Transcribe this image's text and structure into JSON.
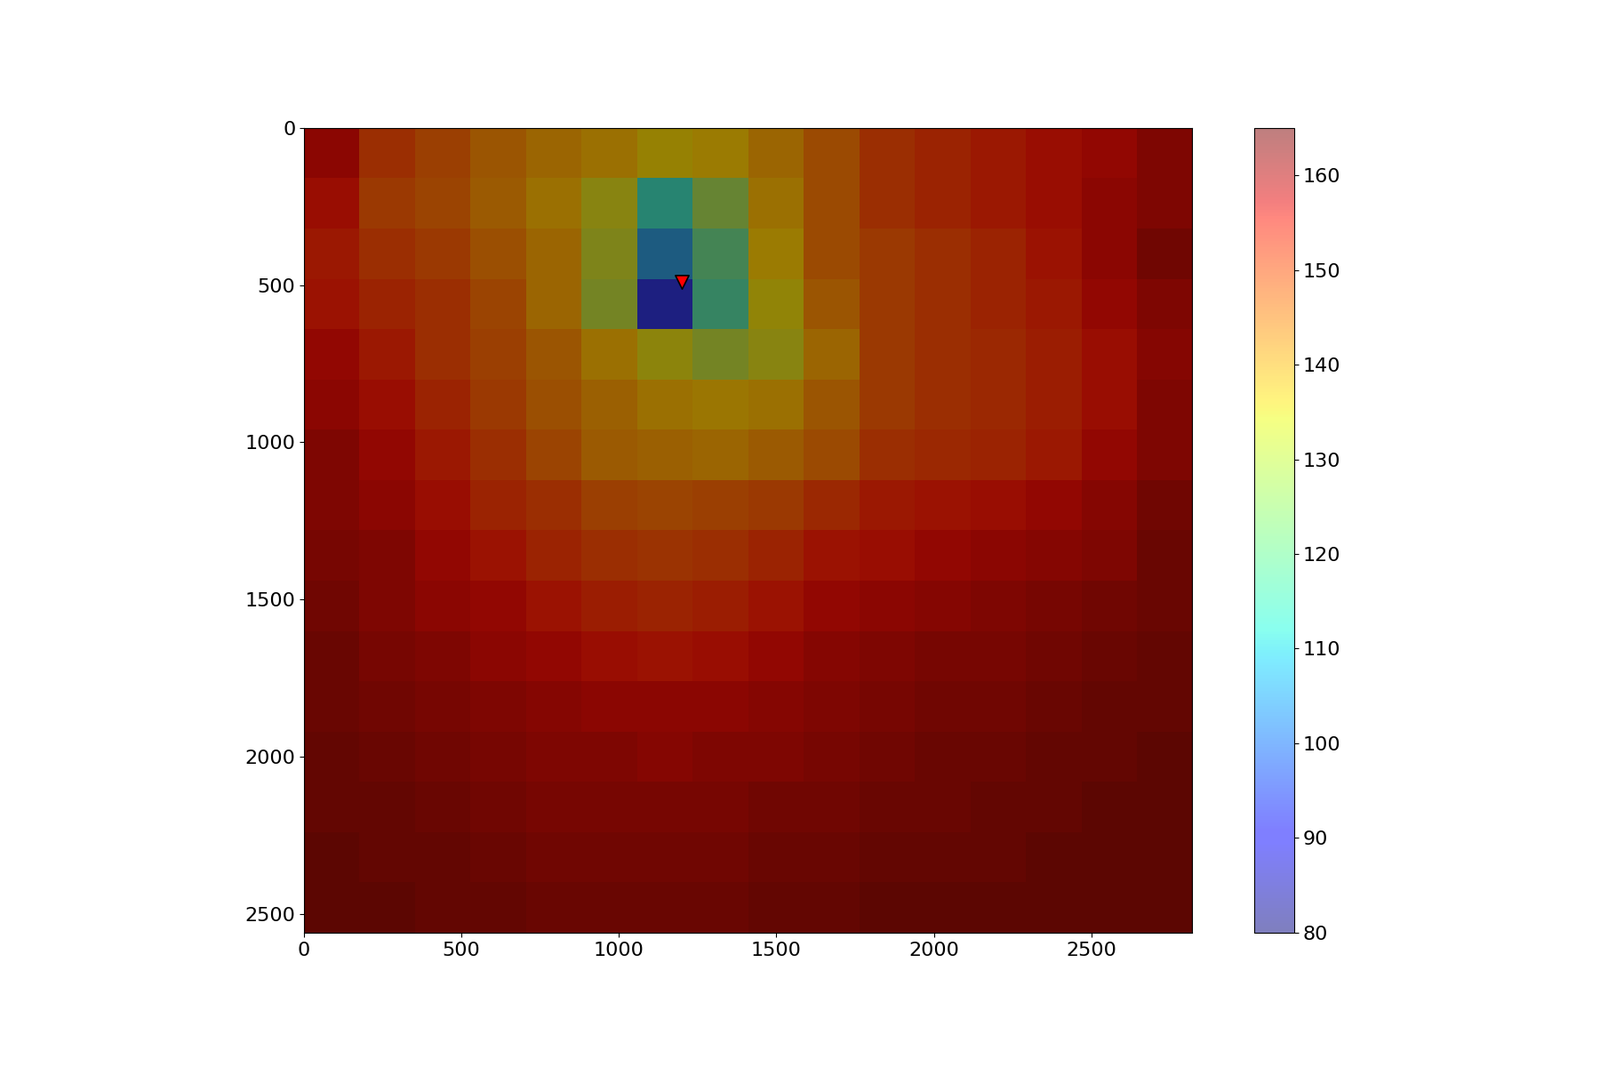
{
  "chart_data": {
    "type": "heatmap",
    "xlim": [
      0,
      2820
    ],
    "ylim": [
      2560,
      0
    ],
    "xticks": [
      0,
      500,
      1000,
      1500,
      2000,
      2500
    ],
    "yticks": [
      0,
      500,
      1000,
      1500,
      2000,
      2500
    ],
    "colorbar_range": [
      80,
      165
    ],
    "colorbar_ticks": [
      80,
      90,
      100,
      110,
      120,
      130,
      140,
      150,
      160
    ],
    "points": [
      {
        "x": 1200,
        "y": 490,
        "marker": "triangle_down",
        "color": "red"
      }
    ],
    "cells": [
      [
        158,
        150,
        147,
        143,
        140,
        138,
        135,
        136,
        140,
        145,
        150,
        152,
        154,
        156,
        157,
        160
      ],
      [
        156,
        148,
        146,
        142,
        138,
        132,
        112,
        125,
        138,
        145,
        150,
        152,
        154,
        156,
        158,
        160
      ],
      [
        154,
        150,
        148,
        144,
        140,
        130,
        105,
        118,
        136,
        145,
        148,
        150,
        152,
        155,
        158,
        162
      ],
      [
        155,
        152,
        150,
        146,
        140,
        128,
        95,
        115,
        134,
        143,
        148,
        150,
        152,
        154,
        157,
        160
      ],
      [
        157,
        154,
        150,
        147,
        143,
        138,
        133,
        128,
        132,
        140,
        148,
        150,
        151,
        153,
        156,
        159
      ],
      [
        158,
        156,
        152,
        148,
        144,
        141,
        138,
        137,
        138,
        143,
        148,
        150,
        151,
        153,
        156,
        160
      ],
      [
        160,
        157,
        154,
        150,
        146,
        142,
        141,
        140,
        142,
        145,
        150,
        151,
        152,
        154,
        157,
        160
      ],
      [
        160,
        158,
        156,
        152,
        150,
        147,
        146,
        147,
        148,
        151,
        154,
        155,
        156,
        157,
        159,
        162
      ],
      [
        161,
        160,
        157,
        155,
        152,
        150,
        149,
        150,
        152,
        155,
        156,
        157,
        158,
        159,
        160,
        163
      ],
      [
        162,
        160,
        158,
        157,
        155,
        153,
        152,
        153,
        155,
        157,
        158,
        159,
        160,
        161,
        162,
        163
      ],
      [
        163,
        161,
        160,
        158,
        157,
        156,
        155,
        156,
        157,
        159,
        160,
        161,
        161,
        162,
        163,
        164
      ],
      [
        163,
        162,
        161,
        160,
        159,
        158,
        158,
        158,
        159,
        160,
        161,
        162,
        162,
        163,
        164,
        164
      ],
      [
        164,
        163,
        162,
        161,
        160,
        160,
        159,
        160,
        160,
        161,
        162,
        163,
        163,
        164,
        164,
        165
      ],
      [
        164,
        164,
        163,
        162,
        161,
        161,
        161,
        161,
        162,
        162,
        163,
        163,
        164,
        164,
        165,
        165
      ],
      [
        165,
        164,
        164,
        163,
        162,
        162,
        162,
        162,
        163,
        163,
        164,
        164,
        164,
        165,
        165,
        165
      ],
      [
        165,
        165,
        164,
        164,
        163,
        163,
        163,
        163,
        164,
        164,
        165,
        165,
        165,
        165,
        165,
        165
      ]
    ]
  }
}
